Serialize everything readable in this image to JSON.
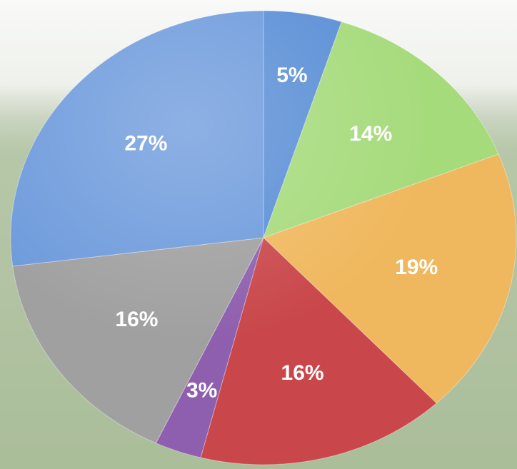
{
  "chart_data": {
    "type": "pie",
    "title": "",
    "slices": [
      {
        "label": "5%",
        "value": 5,
        "color": "#5b8fd6"
      },
      {
        "label": "14%",
        "value": 14,
        "color": "#a6db7c"
      },
      {
        "label": "19%",
        "value": 19,
        "color": "#f0b85e"
      },
      {
        "label": "16%",
        "value": 16,
        "color": "#c9474a"
      },
      {
        "label": "3%",
        "value": 3,
        "color": "#8e5fae"
      },
      {
        "label": "16%",
        "value": 16,
        "color": "#a0a0a0"
      },
      {
        "label": "27%",
        "value": 27,
        "color": "#6e9bdc"
      }
    ],
    "legend": "none"
  }
}
